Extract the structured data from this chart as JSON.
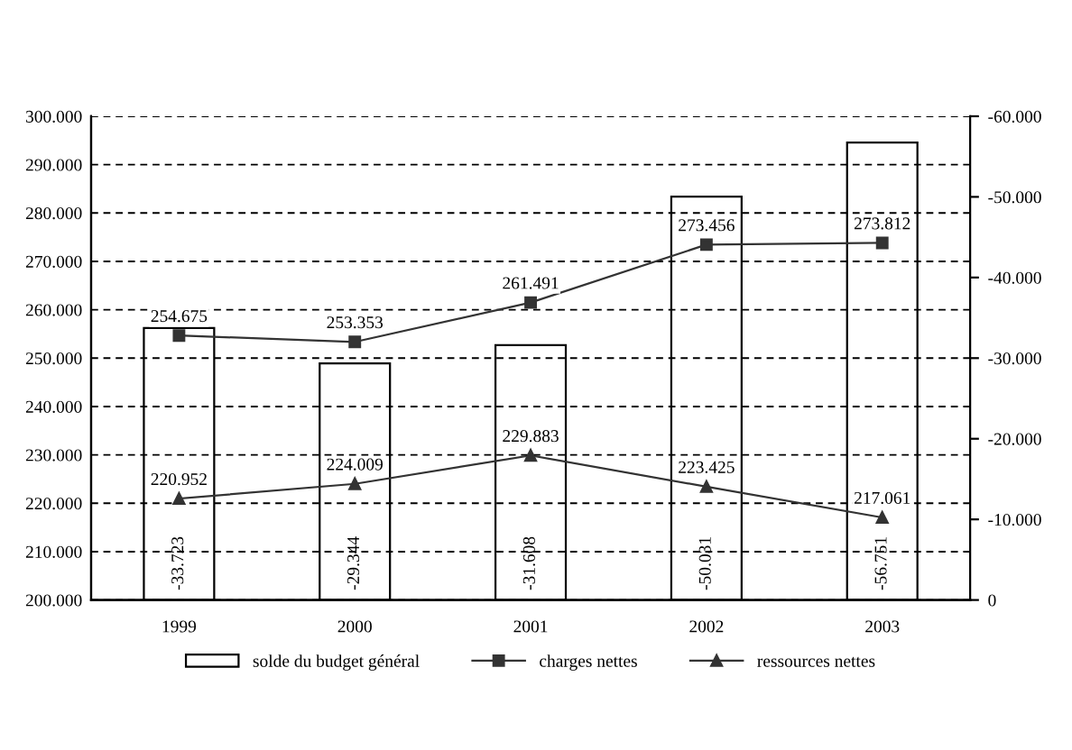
{
  "chart_data": {
    "type": "bar",
    "categories": [
      "1999",
      "2000",
      "2001",
      "2002",
      "2003"
    ],
    "series": [
      {
        "name": "solde du budget général",
        "axis": "y2",
        "color": "#ffffff",
        "values": [
          -33723,
          -29344,
          -31608,
          -50031,
          -56751
        ],
        "value_labels": [
          "-33.723",
          "-29.344",
          "-31.608",
          "-50.031",
          "-56.751"
        ]
      },
      {
        "name": "charges nettes",
        "type": "line",
        "marker": "square",
        "color": "#333333",
        "values": [
          254675,
          253353,
          261491,
          273456,
          273812
        ],
        "value_labels": [
          "254.675",
          "253.353",
          "261.491",
          "273.456",
          "273.812"
        ]
      },
      {
        "name": "ressources nettes",
        "type": "line",
        "marker": "triangle",
        "color": "#333333",
        "values": [
          220952,
          224009,
          229883,
          223425,
          217061
        ],
        "value_labels": [
          "220.952",
          "224.009",
          "229.883",
          "223.425",
          "217.061"
        ]
      }
    ],
    "ylim": [
      200000,
      300000
    ],
    "yticks": [
      {
        "value": 200000,
        "label": "200.000"
      },
      {
        "value": 210000,
        "label": "210.000"
      },
      {
        "value": 220000,
        "label": "220.000"
      },
      {
        "value": 230000,
        "label": "230.000"
      },
      {
        "value": 240000,
        "label": "240.000"
      },
      {
        "value": 250000,
        "label": "250.000"
      },
      {
        "value": 260000,
        "label": "260.000"
      },
      {
        "value": 270000,
        "label": "270.000"
      },
      {
        "value": 280000,
        "label": "280.000"
      },
      {
        "value": 290000,
        "label": "290.000"
      },
      {
        "value": 300000,
        "label": "300.000"
      }
    ],
    "y2lim": [
      0,
      -60000
    ],
    "y2ticks": [
      0,
      {
        "value": -10000,
        "label": "-10.000"
      },
      {
        "value": -20000,
        "label": "-20.000"
      },
      {
        "value": -30000,
        "label": "-30.000"
      },
      {
        "value": -40000,
        "label": "-40.000"
      },
      {
        "value": -50000,
        "label": "-50.000"
      },
      {
        "value": -60000,
        "label": "-60.000"
      }
    ],
    "grid": "y",
    "legend": "bottom",
    "line_style": "solid"
  }
}
